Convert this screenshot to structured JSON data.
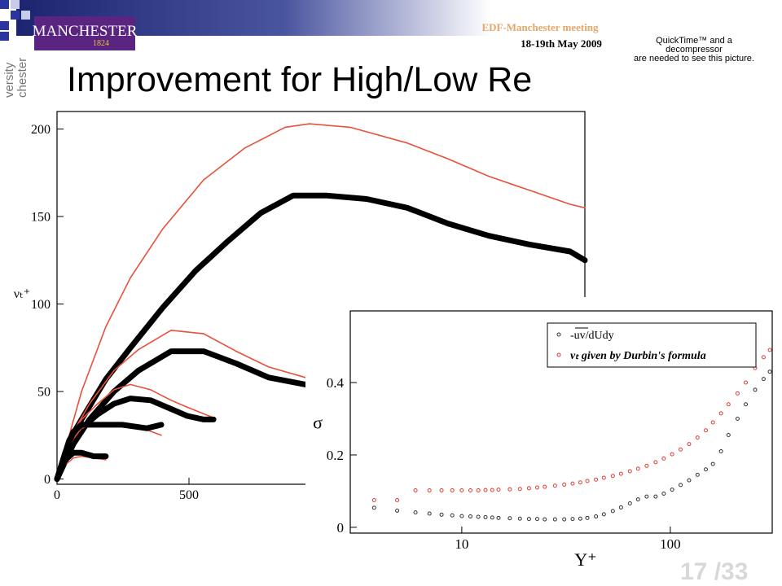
{
  "header": {
    "logo": "MANCHESTER",
    "logo_year": "1824",
    "meeting": "EDF-Manchester meeting",
    "date": "18-19th May 2009",
    "quicktime": [
      "QuickTime™ and a",
      "decompressor",
      "are needed to see this picture."
    ],
    "side_text": [
      "versity",
      "chester"
    ],
    "title": "Improvement for High/Low Re"
  },
  "footer": {
    "page": "17 /33"
  },
  "chart_data": [
    {
      "type": "line",
      "y_label": "νₜ⁺",
      "xlim": [
        0,
        2000
      ],
      "ylim": [
        -3,
        210
      ],
      "xticks": [
        0,
        500
      ],
      "yticks": [
        0,
        50,
        100,
        150,
        200
      ],
      "series": [
        {
          "color": "#e8503a",
          "line_width": 1.6,
          "x": [
            0,
            93,
            185,
            278,
            401,
            556,
            710,
            864,
            957,
            1111,
            1327,
            1481,
            1636,
            1790,
            1944,
            2000
          ],
          "values": [
            0,
            50,
            87,
            115,
            143,
            171,
            189,
            201,
            203,
            201,
            192,
            183,
            173,
            165,
            157,
            155
          ]
        },
        {
          "color": "#000000",
          "line_width": 7,
          "x": [
            0,
            46,
            93,
            185,
            278,
            401,
            525,
            648,
            772,
            895,
            1019,
            1173,
            1327,
            1481,
            1636,
            1790,
            1944,
            2000
          ],
          "values": [
            0,
            22,
            34,
            57,
            75,
            98,
            119,
            136,
            152,
            162,
            162,
            160,
            155,
            146,
            139,
            134,
            130,
            125
          ]
        },
        {
          "color": "#e8503a",
          "line_width": 1.6,
          "x": [
            0,
            62,
            123,
            216,
            309,
            432,
            556,
            679,
            802,
            941
          ],
          "values": [
            0,
            27,
            43,
            62,
            74,
            85,
            83,
            73,
            64,
            58
          ]
        },
        {
          "color": "#000000",
          "line_width": 7,
          "x": [
            0,
            62,
            123,
            216,
            309,
            432,
            556,
            679,
            802,
            941
          ],
          "values": [
            0,
            20,
            34,
            50,
            62,
            73,
            73,
            66,
            58,
            54
          ]
        },
        {
          "color": "#e8503a",
          "line_width": 1.6,
          "x": [
            0,
            46,
            93,
            154,
            216,
            278,
            355,
            432,
            494,
            593
          ],
          "values": [
            0,
            22,
            34,
            43,
            51,
            54,
            51,
            45,
            41,
            35
          ]
        },
        {
          "color": "#000000",
          "line_width": 7,
          "x": [
            0,
            46,
            93,
            154,
            216,
            278,
            355,
            432,
            494,
            556,
            593
          ],
          "values": [
            0,
            18,
            29,
            37,
            43,
            46,
            45,
            40,
            36,
            34,
            34
          ]
        },
        {
          "color": "#e8503a",
          "line_width": 1.6,
          "x": [
            0,
            31,
            62,
            93,
            154,
            247,
            340,
            395
          ],
          "values": [
            0,
            13,
            23,
            29,
            32,
            31,
            28,
            25
          ]
        },
        {
          "color": "#000000",
          "line_width": 7,
          "x": [
            0,
            31,
            62,
            93,
            154,
            247,
            340,
            395
          ],
          "values": [
            0,
            15,
            27,
            31,
            31,
            31,
            29,
            31
          ]
        },
        {
          "color": "#e8503a",
          "line_width": 1.6,
          "x": [
            0,
            31,
            62,
            93,
            139,
            185
          ],
          "values": [
            0,
            8,
            12,
            13,
            12,
            11
          ]
        },
        {
          "color": "#000000",
          "line_width": 7,
          "x": [
            0,
            31,
            62,
            93,
            139,
            185
          ],
          "values": [
            0,
            11,
            15,
            15,
            13,
            13
          ]
        }
      ]
    },
    {
      "type": "scatter",
      "x_label": "Y⁺",
      "y_label": "σ",
      "log_x": true,
      "legend": "upper right",
      "xlim": [
        2.92,
        308
      ],
      "ylim": [
        -0.016,
        0.598
      ],
      "xticks": [
        10,
        100
      ],
      "yticks": [
        0,
        0.2,
        0.4
      ],
      "x": [
        3.8,
        4.9,
        6,
        7,
        8,
        9,
        10,
        11,
        12,
        13,
        14,
        15,
        17,
        19,
        21,
        23,
        25,
        28,
        31,
        34,
        37,
        40,
        44,
        48,
        53,
        58,
        64,
        70,
        77,
        85,
        93,
        102,
        112,
        123,
        135,
        148,
        160,
        175,
        190,
        210,
        230,
        255,
        280,
        300
      ],
      "series": [
        {
          "name": "-uv/dUdy",
          "color": "#333333",
          "values": [
            0.054,
            0.046,
            0.041,
            0.038,
            0.035,
            0.033,
            0.031,
            0.03,
            0.029,
            0.028,
            0.027,
            0.026,
            0.025,
            0.024,
            0.023,
            0.023,
            0.022,
            0.022,
            0.022,
            0.023,
            0.024,
            0.026,
            0.03,
            0.036,
            0.045,
            0.055,
            0.066,
            0.077,
            0.085,
            0.085,
            0.093,
            0.104,
            0.117,
            0.13,
            0.145,
            0.16,
            0.175,
            0.21,
            0.255,
            0.3,
            0.34,
            0.38,
            0.41,
            0.43
          ]
        },
        {
          "name": "νₜ given by Durbin's formula",
          "color": "#e03c31",
          "values": [
            0.075,
            0.075,
            0.102,
            0.102,
            0.102,
            0.102,
            0.102,
            0.102,
            0.102,
            0.103,
            0.103,
            0.104,
            0.105,
            0.106,
            0.108,
            0.11,
            0.112,
            0.115,
            0.118,
            0.121,
            0.124,
            0.128,
            0.132,
            0.137,
            0.142,
            0.148,
            0.155,
            0.162,
            0.17,
            0.18,
            0.19,
            0.202,
            0.215,
            0.23,
            0.248,
            0.268,
            0.29,
            0.315,
            0.34,
            0.37,
            0.4,
            0.44,
            0.47,
            0.49
          ]
        }
      ]
    }
  ]
}
